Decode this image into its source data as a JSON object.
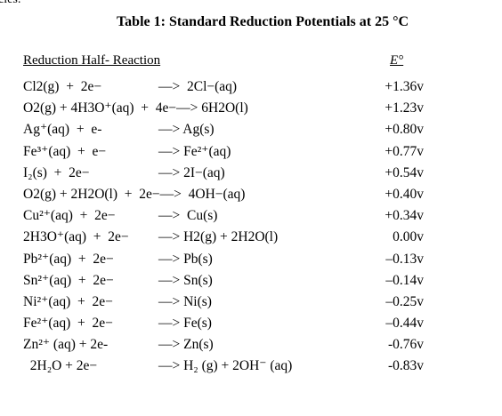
{
  "fragment": "cies:",
  "title": "Table 1:  Standard Reduction Potentials at 25 °C",
  "table": {
    "header": {
      "reaction": "Reduction Half- Reaction",
      "potential": "E°"
    },
    "rows": [
      {
        "lhs": "Cl2(g)  +  2e−",
        "rhs": "—>  2Cl−(aq)",
        "potential": "+1.36v"
      },
      {
        "lhs": "O2(g) + 4H3O⁺(aq)  +  4e−",
        "rhs": "—> 6H2O(l)",
        "potential": "+1.23v"
      },
      {
        "lhs": "Ag⁺(aq)  +  e-",
        "rhs": "—> Ag(s)",
        "potential": "+0.80v"
      },
      {
        "lhs": "Fe³⁺(aq)  +  e−",
        "rhs": "—> Fe²⁺(aq)",
        "potential": "+0.77v"
      },
      {
        "lhs": "I₂(s)  +  2e−",
        "rhs": "—> 2I−(aq)",
        "potential": "+0.54v"
      },
      {
        "lhs": "O2(g) + 2H2O(l)  +  2e−",
        "rhs": "—>  4OH−(aq)",
        "potential": "+0.40v"
      },
      {
        "lhs": "Cu²⁺(aq)  +  2e−",
        "rhs": "—>  Cu(s)",
        "potential": "+0.34v"
      },
      {
        "lhs": "2H3O⁺(aq)  +  2e−",
        "rhs": "—> H2(g) + 2H2O(l)",
        "potential": "0.00v"
      },
      {
        "lhs": "Pb²⁺(aq)  +  2e−",
        "rhs": "—> Pb(s)",
        "potential": "–0.13v"
      },
      {
        "lhs": "Sn²⁺(aq)  +  2e−",
        "rhs": "—> Sn(s)",
        "potential": "–0.14v"
      },
      {
        "lhs": "Ni²⁺(aq)  +  2e−",
        "rhs": "—> Ni(s)",
        "potential": "–0.25v"
      },
      {
        "lhs": "Fe²⁺(aq)  +  2e−",
        "rhs": "—> Fe(s)",
        "potential": "–0.44v"
      },
      {
        "lhs": "Zn²⁺ (aq) + 2e-",
        "rhs": "—> Zn(s)",
        "potential": "-0.76v"
      },
      {
        "lhs": "  2H₂O + 2e−",
        "rhs": "—> H₂ (g) + 2OH⁻ (aq)",
        "potential": "-0.83v"
      }
    ]
  }
}
